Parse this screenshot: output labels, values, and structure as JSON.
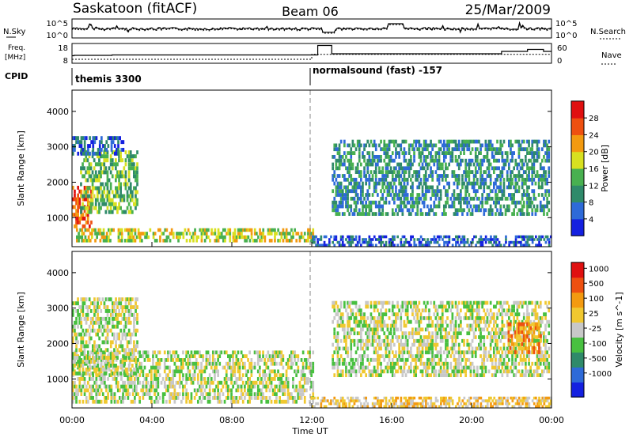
{
  "header": {
    "station": "Saskatoon (fitACF)",
    "beam": "Beam 06",
    "date": "25/Mar/2009"
  },
  "noise_panel": {
    "left_label": "N.Sky",
    "left_ticks": [
      "10^5",
      "10^0"
    ],
    "right_ticks": [
      "10^5",
      "10^0"
    ],
    "right_label": "N.Search"
  },
  "freq_panel": {
    "left_label_line1": "Freq.",
    "left_label_line2": "[MHz]",
    "left_ticks": [
      "18",
      "8"
    ],
    "right_ticks": [
      "60",
      "0"
    ],
    "right_label": "Nave"
  },
  "cpid": {
    "label": "CPID",
    "segments": [
      {
        "text": "themis 3300",
        "start": 0.0,
        "end": 12.0
      },
      {
        "text": "normalsound (fast) -157",
        "start": 12.0,
        "end": 24.0
      }
    ]
  },
  "x_axis": {
    "label": "Time UT",
    "ticks": [
      "00:00",
      "04:00",
      "08:00",
      "12:00",
      "16:00",
      "20:00",
      "00:00"
    ]
  },
  "chart_data": [
    {
      "type": "heatmap",
      "ylabel": "Slant Range [km]",
      "xlabel": "",
      "xlim": [
        0,
        24
      ],
      "ylim": [
        180,
        4600
      ],
      "yticks": [
        "1000",
        "2000",
        "3000",
        "4000"
      ],
      "colorbar": {
        "label": "Power [dB]",
        "ticks": [
          "4",
          "8",
          "12",
          "16",
          "20",
          "24",
          "28"
        ],
        "colors": [
          "#1420e0",
          "#2e6ad8",
          "#2f8a6a",
          "#48b050",
          "#d8e020",
          "#f39a10",
          "#ee5010",
          "#e01010"
        ]
      },
      "regions": [
        {
          "t0": 0.0,
          "t1": 1.0,
          "r0": 700,
          "r1": 1900,
          "level": 6
        },
        {
          "t0": 0.2,
          "t1": 12.1,
          "r0": 300,
          "r1": 700,
          "level": 4
        },
        {
          "t0": 0.4,
          "t1": 3.3,
          "r0": 1100,
          "r1": 2900,
          "level": 3
        },
        {
          "t0": 0.0,
          "t1": 2.6,
          "r0": 2750,
          "r1": 3300,
          "level": 1
        },
        {
          "t0": 13.0,
          "t1": 23.9,
          "r0": 1050,
          "r1": 3200,
          "level": 2
        },
        {
          "t0": 12.0,
          "t1": 24.0,
          "r0": 180,
          "r1": 500,
          "level": 1
        }
      ]
    },
    {
      "type": "heatmap",
      "ylabel": "Slant Range [km]",
      "xlabel": "Time UT",
      "xlim": [
        0,
        24
      ],
      "ylim": [
        180,
        4600
      ],
      "yticks": [
        "1000",
        "2000",
        "3000",
        "4000"
      ],
      "colorbar": {
        "label": "Velocity [m s^-1]",
        "ticks": [
          "1000",
          "500",
          "100",
          "25",
          "-25",
          "-100",
          "-500",
          "-1000"
        ],
        "colors": [
          "#1420e0",
          "#2e6ad8",
          "#2f8a6a",
          "#48c040",
          "#c8c8c8",
          "#f0c830",
          "#f39a10",
          "#ee5010",
          "#e01010"
        ]
      },
      "regions": [
        {
          "t0": 0.0,
          "t1": 12.1,
          "r0": 300,
          "r1": 1800,
          "level": 4
        },
        {
          "t0": 0.0,
          "t1": 3.3,
          "r0": 1100,
          "r1": 3300,
          "level": 4
        },
        {
          "t0": 13.0,
          "t1": 23.9,
          "r0": 1050,
          "r1": 3200,
          "level": 4
        },
        {
          "t0": 21.8,
          "t1": 23.5,
          "r0": 1700,
          "r1": 2600,
          "level": 6
        },
        {
          "t0": 12.0,
          "t1": 24.0,
          "r0": 180,
          "r1": 500,
          "level": 5
        }
      ]
    }
  ]
}
